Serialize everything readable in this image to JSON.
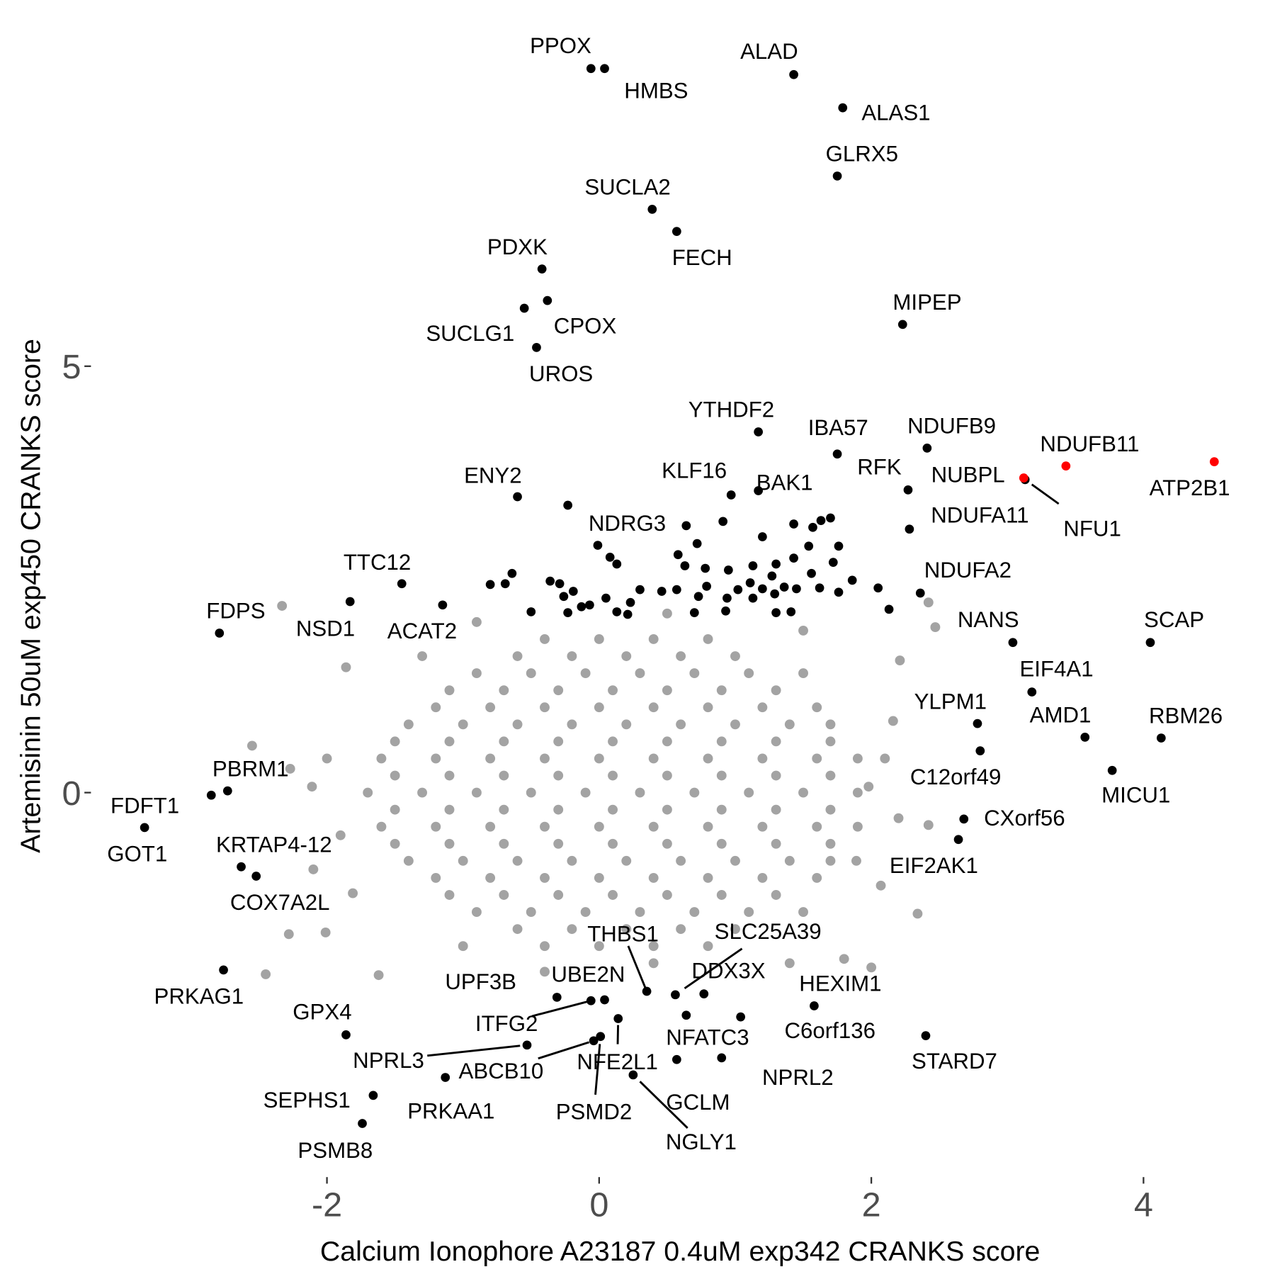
{
  "chart_data": {
    "type": "scatter",
    "x_label": "Calcium Ionophore A23187 0.4uM exp342 CRANKS score",
    "y_label": "Artemisinin 50uM exp450 CRANKS score",
    "xlim": [
      -3.71,
      4.9
    ],
    "ylim": [
      -4.47,
      9.15
    ],
    "xticks": [
      -2,
      0,
      2,
      4
    ],
    "yticks": [
      0,
      5
    ],
    "grid": false,
    "series": [
      {
        "color": "#a3a3a3",
        "x": [
          -2.33,
          -2.55,
          -2.27,
          -2.11,
          -2.28,
          -2.01,
          -2.45,
          -1.62,
          -1.81,
          -1.86,
          2.42,
          2.47,
          2.21,
          2.42,
          2.34,
          1.8,
          2.0,
          1.89,
          2.07,
          2.16,
          1.98,
          -2.0,
          -1.9,
          -2.1,
          2.1,
          2.2,
          1.4,
          0.4,
          -0.4,
          -1.0,
          -1.3,
          1.5,
          -0.9,
          0.5,
          -0.4,
          0.0,
          0.4,
          0.8,
          -0.6,
          -0.2,
          0.2,
          0.6,
          1.0,
          -0.9,
          -0.5,
          -0.1,
          0.3,
          0.7,
          1.1,
          1.5,
          -1.1,
          -0.7,
          -0.3,
          0.1,
          0.5,
          0.9,
          1.3,
          -1.2,
          -0.8,
          -0.4,
          0.0,
          0.4,
          0.8,
          1.2,
          1.6,
          -1.4,
          -1.0,
          -0.6,
          -0.2,
          0.2,
          0.6,
          1.0,
          1.4,
          1.7,
          -1.5,
          -1.1,
          -0.7,
          -0.3,
          0.1,
          0.5,
          0.9,
          1.3,
          1.7,
          -1.6,
          -1.2,
          -0.8,
          -0.4,
          0.0,
          0.4,
          0.8,
          1.2,
          1.6,
          1.9,
          -1.5,
          -1.1,
          -0.7,
          -0.3,
          0.1,
          0.5,
          0.9,
          1.3,
          1.7,
          -1.7,
          -1.3,
          -0.9,
          -0.5,
          -0.1,
          0.3,
          0.7,
          1.1,
          1.5,
          1.9,
          -1.5,
          -1.1,
          -0.7,
          -0.3,
          0.1,
          0.5,
          0.9,
          1.3,
          1.7,
          -1.6,
          -1.2,
          -0.8,
          -0.4,
          0.0,
          0.4,
          0.8,
          1.2,
          1.6,
          1.9,
          -1.5,
          -1.1,
          -0.7,
          -0.3,
          0.1,
          0.5,
          0.9,
          1.3,
          1.7,
          -1.4,
          -1.0,
          -0.6,
          -0.2,
          0.2,
          0.6,
          1.0,
          1.4,
          1.7,
          -1.2,
          -0.8,
          -0.4,
          0.0,
          0.4,
          0.8,
          1.2,
          1.6,
          -1.1,
          -0.7,
          -0.3,
          0.1,
          0.5,
          0.9,
          1.3,
          -0.9,
          -0.5,
          -0.1,
          0.3,
          0.7,
          1.1,
          1.5,
          -0.6,
          -0.2,
          0.2,
          0.6,
          1.0,
          -0.4,
          0.0,
          0.4,
          0.8
        ],
        "y": [
          2.19,
          0.55,
          0.28,
          0.07,
          -1.66,
          -1.64,
          -2.13,
          -2.14,
          -1.18,
          1.47,
          2.23,
          1.94,
          1.55,
          -0.38,
          -1.42,
          -1.95,
          -2.05,
          -0.8,
          -1.09,
          0.84,
          0.07,
          0.4,
          -0.5,
          -0.9,
          0.4,
          -0.3,
          -2.0,
          -2.0,
          -2.1,
          -1.8,
          1.6,
          1.9,
          2.0,
          2.1,
          1.8,
          1.8,
          1.8,
          1.8,
          1.6,
          1.6,
          1.6,
          1.6,
          1.6,
          1.4,
          1.4,
          1.4,
          1.4,
          1.4,
          1.4,
          1.4,
          1.2,
          1.2,
          1.2,
          1.2,
          1.2,
          1.2,
          1.2,
          1.0,
          1.0,
          1.0,
          1.0,
          1.0,
          1.0,
          1.0,
          1.0,
          0.8,
          0.8,
          0.8,
          0.8,
          0.8,
          0.8,
          0.8,
          0.8,
          0.8,
          0.6,
          0.6,
          0.6,
          0.6,
          0.6,
          0.6,
          0.6,
          0.6,
          0.6,
          0.4,
          0.4,
          0.4,
          0.4,
          0.4,
          0.4,
          0.4,
          0.4,
          0.4,
          0.4,
          0.2,
          0.2,
          0.2,
          0.2,
          0.2,
          0.2,
          0.2,
          0.2,
          0.2,
          0.0,
          0.0,
          0.0,
          0.0,
          0.0,
          0.0,
          0.0,
          0.0,
          0.0,
          0.0,
          -0.2,
          -0.2,
          -0.2,
          -0.2,
          -0.2,
          -0.2,
          -0.2,
          -0.2,
          -0.2,
          -0.4,
          -0.4,
          -0.4,
          -0.4,
          -0.4,
          -0.4,
          -0.4,
          -0.4,
          -0.4,
          -0.4,
          -0.6,
          -0.6,
          -0.6,
          -0.6,
          -0.6,
          -0.6,
          -0.6,
          -0.6,
          -0.6,
          -0.8,
          -0.8,
          -0.8,
          -0.8,
          -0.8,
          -0.8,
          -0.8,
          -0.8,
          -0.8,
          -1.0,
          -1.0,
          -1.0,
          -1.0,
          -1.0,
          -1.0,
          -1.0,
          -1.0,
          -1.2,
          -1.2,
          -1.2,
          -1.2,
          -1.2,
          -1.2,
          -1.2,
          -1.4,
          -1.4,
          -1.4,
          -1.4,
          -1.4,
          -1.4,
          -1.4,
          -1.6,
          -1.6,
          -1.6,
          -1.6,
          -1.6,
          -1.8,
          -1.8,
          -1.8,
          -1.8
        ]
      },
      {
        "color": "#000000",
        "x": [
          -0.06,
          0.04,
          1.43,
          1.79,
          1.75,
          0.39,
          0.57,
          -0.42,
          -0.38,
          -0.55,
          -0.46,
          2.23,
          1.17,
          1.75,
          2.41,
          3.13,
          2.27,
          0.97,
          1.17,
          -0.6,
          0.64,
          2.28,
          2.36,
          3.04,
          4.05,
          3.18,
          3.57,
          4.13,
          3.77,
          2.78,
          2.8,
          2.68,
          2.64,
          -1.45,
          -1.83,
          -1.15,
          -2.79,
          -2.73,
          -2.85,
          -3.34,
          -2.63,
          -2.52,
          -2.76,
          -1.86,
          -0.53,
          -1.13,
          -1.66,
          -1.74,
          -0.06,
          -0.31,
          0.04,
          0.35,
          0.56,
          0.77,
          -0.04,
          0.01,
          0.14,
          0.25,
          0.64,
          0.57,
          0.9,
          1.58,
          1.04,
          2.4,
          -0.23,
          -0.01,
          0.08,
          0.13,
          0.58,
          0.72,
          0.91,
          1.2,
          1.43,
          1.57,
          1.63,
          1.7,
          1.54,
          1.76,
          1.72,
          1.43,
          1.3,
          1.27,
          1.13,
          0.95,
          0.78,
          0.63,
          1.11,
          1.02,
          1.2,
          1.13,
          1.29,
          1.36,
          1.45,
          1.56,
          1.62,
          1.76,
          1.86,
          2.05,
          2.13,
          0.94,
          0.79,
          0.73,
          0.57,
          0.46,
          0.3,
          0.23,
          0.21,
          0.13,
          0.05,
          -0.07,
          -0.13,
          -0.19,
          -0.26,
          -0.29,
          -0.36,
          -0.23,
          -0.5,
          -0.64,
          -0.69,
          -0.8,
          0.93,
          1.41,
          1.3,
          0.7
        ],
        "y": [
          8.49,
          8.49,
          8.42,
          8.03,
          7.23,
          6.84,
          6.58,
          6.14,
          5.77,
          5.68,
          5.22,
          5.49,
          4.23,
          3.97,
          4.04,
          3.67,
          3.55,
          3.49,
          3.54,
          3.47,
          3.13,
          3.09,
          2.34,
          1.76,
          1.76,
          1.18,
          0.65,
          0.64,
          0.26,
          0.81,
          0.49,
          -0.31,
          -0.55,
          2.45,
          2.24,
          2.2,
          1.87,
          0.02,
          -0.03,
          -0.41,
          -0.87,
          -0.98,
          -2.08,
          -2.84,
          -2.96,
          -3.34,
          -3.55,
          -3.88,
          -2.44,
          -2.4,
          -2.43,
          -2.33,
          -2.37,
          -2.36,
          -2.91,
          -2.86,
          -2.65,
          -3.31,
          -2.61,
          -3.13,
          -3.11,
          -2.5,
          -2.63,
          -2.85,
          3.37,
          2.9,
          2.76,
          2.68,
          2.79,
          2.92,
          3.18,
          3.0,
          3.15,
          3.11,
          3.19,
          3.22,
          2.89,
          2.89,
          2.7,
          2.75,
          2.68,
          2.54,
          2.66,
          2.61,
          2.63,
          2.66,
          2.46,
          2.38,
          2.39,
          2.28,
          2.33,
          2.41,
          2.39,
          2.57,
          2.4,
          2.35,
          2.49,
          2.4,
          2.15,
          2.28,
          2.42,
          2.3,
          2.38,
          2.36,
          2.38,
          2.23,
          2.09,
          2.12,
          2.28,
          2.2,
          2.18,
          2.36,
          2.3,
          2.45,
          2.48,
          2.11,
          2.12,
          2.57,
          2.45,
          2.44,
          2.13,
          2.12,
          2.11,
          2.11
        ],
        "labels": [
          "PPOX",
          "HMBS",
          "ALAD",
          "ALAS1",
          "GLRX5",
          "SUCLA2",
          "FECH",
          "PDXK",
          "CPOX",
          "SUCLG1",
          "UROS",
          "MIPEP",
          "YTHDF2",
          "IBA57",
          "NDUFB9",
          "NFU1",
          "RFK",
          "KLF16",
          "BAK1",
          "ENY2",
          "NDRG3",
          "NDUFA11",
          "NDUFA2",
          "NANS",
          "SCAP",
          "EIF4A1",
          "AMD1",
          "RBM26",
          "MICU1",
          "YLPM1",
          "C12orf49",
          "CXorf56",
          "EIF2AK1",
          "TTC12",
          "NSD1",
          "ACAT2",
          "FDPS",
          "PBRM1",
          "FDFT1",
          "GOT1",
          "KRTAP4-12",
          "COX7A2L",
          "PRKAG1",
          "GPX4",
          "NPRL3",
          "PRKAA1",
          "SEPHS1",
          "PSMB8",
          "ITFG2",
          "UPF3B",
          "UBE2N",
          "THBS1",
          "SLC25A39",
          "DDX3X",
          "ABCB10",
          "PSMD2",
          "NFE2L1",
          "NGLY1",
          "NFATC3",
          "GCLM",
          "NPRL2",
          "HEXIM1",
          "C6orf136",
          "STARD7",
          null,
          null,
          null,
          null,
          null,
          null,
          null,
          null,
          null,
          null,
          null,
          null,
          null,
          null,
          null,
          null,
          null,
          null,
          null,
          null,
          null,
          null,
          null,
          null,
          null,
          null,
          null,
          null,
          null,
          null,
          null,
          null,
          null,
          null,
          null,
          null,
          null,
          null,
          null,
          null,
          null,
          null,
          null,
          null,
          null,
          null,
          null,
          null,
          null,
          null,
          null,
          null,
          null,
          null,
          null,
          null,
          null,
          null,
          null,
          null
        ]
      },
      {
        "color": "#ff0000",
        "x": [
          3.12,
          3.43,
          4.52
        ],
        "y": [
          3.69,
          3.83,
          3.88
        ],
        "labels": [
          "NUBPL",
          "NDUFB11",
          "ATP2B1"
        ]
      }
    ]
  }
}
